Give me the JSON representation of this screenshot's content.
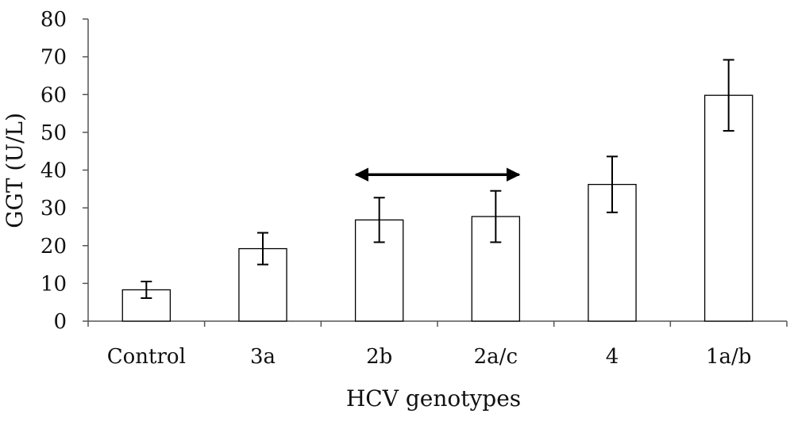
{
  "chart_data": {
    "type": "bar",
    "xlabel": "HCV genotypes",
    "ylabel": "GGT (U/L)",
    "ylim": [
      0,
      80
    ],
    "yticks": [
      0,
      10,
      20,
      30,
      40,
      50,
      60,
      70,
      80
    ],
    "categories": [
      "Control",
      "3a",
      "2b",
      "2a/c",
      "4",
      "1a/b"
    ],
    "values": [
      8.3,
      19.2,
      26.8,
      27.7,
      36.2,
      59.8
    ],
    "error": [
      2.2,
      4.2,
      5.9,
      6.8,
      7.4,
      9.4
    ],
    "annotations": [
      {
        "type": "double-arrow",
        "from_category": "2b",
        "to_category": "2a/c",
        "y": 38.8
      }
    ],
    "grid": false,
    "bar_fill": "#ffffff",
    "bar_stroke": "#000000"
  }
}
